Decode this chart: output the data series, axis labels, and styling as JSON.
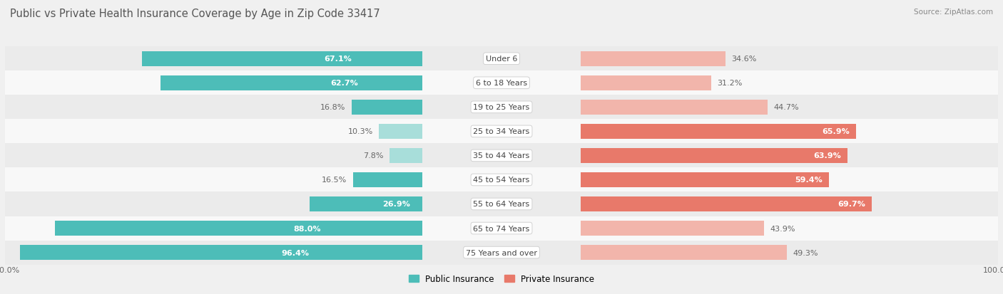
{
  "title": "Public vs Private Health Insurance Coverage by Age in Zip Code 33417",
  "source": "Source: ZipAtlas.com",
  "categories": [
    "Under 6",
    "6 to 18 Years",
    "19 to 25 Years",
    "25 to 34 Years",
    "35 to 44 Years",
    "45 to 54 Years",
    "55 to 64 Years",
    "65 to 74 Years",
    "75 Years and over"
  ],
  "public_values": [
    67.1,
    62.7,
    16.8,
    10.3,
    7.8,
    16.5,
    26.9,
    88.0,
    96.4
  ],
  "private_values": [
    34.6,
    31.2,
    44.7,
    65.9,
    63.9,
    59.4,
    69.7,
    43.9,
    49.3
  ],
  "public_color": "#4dbdb8",
  "private_color": "#e8796a",
  "public_color_light": "#a8deda",
  "private_color_light": "#f2b5ab",
  "row_bg_even": "#ebebeb",
  "row_bg_odd": "#f8f8f8",
  "bar_height": 0.62,
  "title_fontsize": 10.5,
  "label_fontsize": 8.0,
  "category_fontsize": 8.0,
  "legend_fontsize": 8.5,
  "source_fontsize": 7.5,
  "background_color": "#f0f0f0",
  "title_color": "#555555",
  "source_color": "#888888",
  "label_color_dark": "#666666",
  "label_color_white": "#ffffff",
  "white_label_threshold_pub": 20,
  "white_label_threshold_priv": 50
}
